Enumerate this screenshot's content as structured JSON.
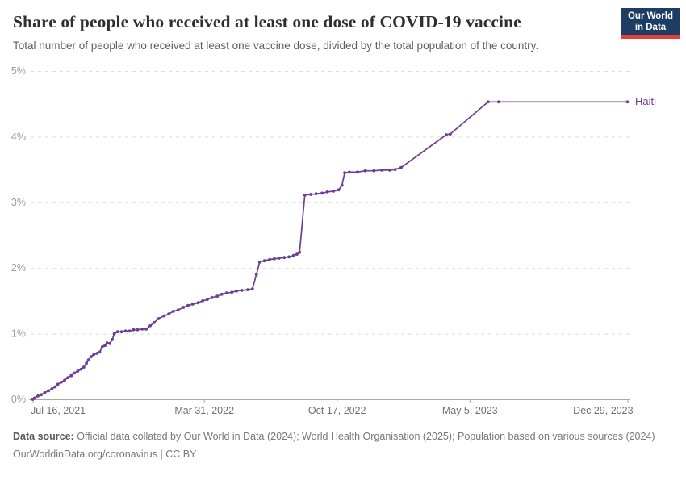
{
  "logo": {
    "line1": "Our World",
    "line2": "in Data",
    "bg_color": "#1d3d63",
    "accent_color": "#e0403e"
  },
  "chart_data": {
    "type": "line",
    "title": "Share of people who received at least one dose of COVID-19 vaccine",
    "subtitle": "Total number of people who received at least one vaccine dose, divided by the total population of the country.",
    "legend_position": "end-of-line entity label",
    "grid": "horizontal dashed",
    "x_axis": {
      "unit": "days since Jul 16, 2021",
      "range": [
        -3,
        899
      ],
      "ticks": [
        {
          "v": 0,
          "label": "Jul 16, 2021",
          "align": "start"
        },
        {
          "v": 258,
          "label": "Mar 31, 2022",
          "align": "middle"
        },
        {
          "v": 458,
          "label": "Oct 17, 2022",
          "align": "middle"
        },
        {
          "v": 658,
          "label": "May 5, 2023",
          "align": "middle"
        },
        {
          "v": 896,
          "label": "Dec 29, 2023",
          "align": "end"
        }
      ]
    },
    "y_axis": {
      "range": [
        0,
        5
      ],
      "ticks": [
        {
          "v": 0,
          "label": "0%"
        },
        {
          "v": 1,
          "label": "1%"
        },
        {
          "v": 2,
          "label": "2%"
        },
        {
          "v": 3,
          "label": "3%"
        },
        {
          "v": 4,
          "label": "4%"
        },
        {
          "v": 5,
          "label": "5%"
        }
      ]
    },
    "series": [
      {
        "name": "Haiti",
        "color": "#6d3e91",
        "points": [
          [
            0,
            0.0
          ],
          [
            3,
            0.02
          ],
          [
            8,
            0.05
          ],
          [
            13,
            0.07
          ],
          [
            18,
            0.1
          ],
          [
            24,
            0.13
          ],
          [
            29,
            0.16
          ],
          [
            34,
            0.19
          ],
          [
            38,
            0.23
          ],
          [
            43,
            0.26
          ],
          [
            48,
            0.29
          ],
          [
            53,
            0.33
          ],
          [
            58,
            0.36
          ],
          [
            63,
            0.4
          ],
          [
            68,
            0.43
          ],
          [
            73,
            0.46
          ],
          [
            77,
            0.49
          ],
          [
            81,
            0.55
          ],
          [
            84,
            0.6
          ],
          [
            88,
            0.65
          ],
          [
            92,
            0.68
          ],
          [
            97,
            0.7
          ],
          [
            101,
            0.72
          ],
          [
            105,
            0.8
          ],
          [
            109,
            0.82
          ],
          [
            112,
            0.86
          ],
          [
            116,
            0.85
          ],
          [
            120,
            0.91
          ],
          [
            123,
            1.0
          ],
          [
            128,
            1.03
          ],
          [
            134,
            1.03
          ],
          [
            140,
            1.04
          ],
          [
            146,
            1.04
          ],
          [
            152,
            1.06
          ],
          [
            158,
            1.06
          ],
          [
            165,
            1.07
          ],
          [
            171,
            1.07
          ],
          [
            177,
            1.12
          ],
          [
            183,
            1.17
          ],
          [
            190,
            1.23
          ],
          [
            198,
            1.27
          ],
          [
            205,
            1.3
          ],
          [
            212,
            1.34
          ],
          [
            219,
            1.36
          ],
          [
            227,
            1.4
          ],
          [
            234,
            1.43
          ],
          [
            241,
            1.45
          ],
          [
            249,
            1.47
          ],
          [
            256,
            1.5
          ],
          [
            263,
            1.52
          ],
          [
            270,
            1.55
          ],
          [
            278,
            1.57
          ],
          [
            285,
            1.6
          ],
          [
            292,
            1.62
          ],
          [
            300,
            1.63
          ],
          [
            307,
            1.65
          ],
          [
            315,
            1.66
          ],
          [
            324,
            1.67
          ],
          [
            331,
            1.68
          ],
          [
            337,
            1.9
          ],
          [
            342,
            2.09
          ],
          [
            349,
            2.11
          ],
          [
            357,
            2.13
          ],
          [
            364,
            2.14
          ],
          [
            371,
            2.15
          ],
          [
            379,
            2.16
          ],
          [
            386,
            2.17
          ],
          [
            393,
            2.19
          ],
          [
            398,
            2.21
          ],
          [
            402,
            2.24
          ],
          [
            410,
            3.11
          ],
          [
            419,
            3.12
          ],
          [
            427,
            3.13
          ],
          [
            436,
            3.14
          ],
          [
            444,
            3.16
          ],
          [
            453,
            3.17
          ],
          [
            461,
            3.19
          ],
          [
            466,
            3.26
          ],
          [
            470,
            3.45
          ],
          [
            477,
            3.46
          ],
          [
            489,
            3.46
          ],
          [
            501,
            3.48
          ],
          [
            514,
            3.48
          ],
          [
            526,
            3.49
          ],
          [
            538,
            3.49
          ],
          [
            546,
            3.5
          ],
          [
            555,
            3.53
          ],
          [
            623,
            4.03
          ],
          [
            629,
            4.04
          ],
          [
            686,
            4.53
          ],
          [
            702,
            4.53
          ],
          [
            896,
            4.53
          ]
        ]
      }
    ]
  },
  "footer": {
    "datasource_label": "Data source:",
    "datasource_text": "Official data collated by Our World in Data (2024); World Health Organisation (2025); Population based on various sources (2024)",
    "credit": "OurWorldinData.org/coronavirus | CC BY"
  }
}
